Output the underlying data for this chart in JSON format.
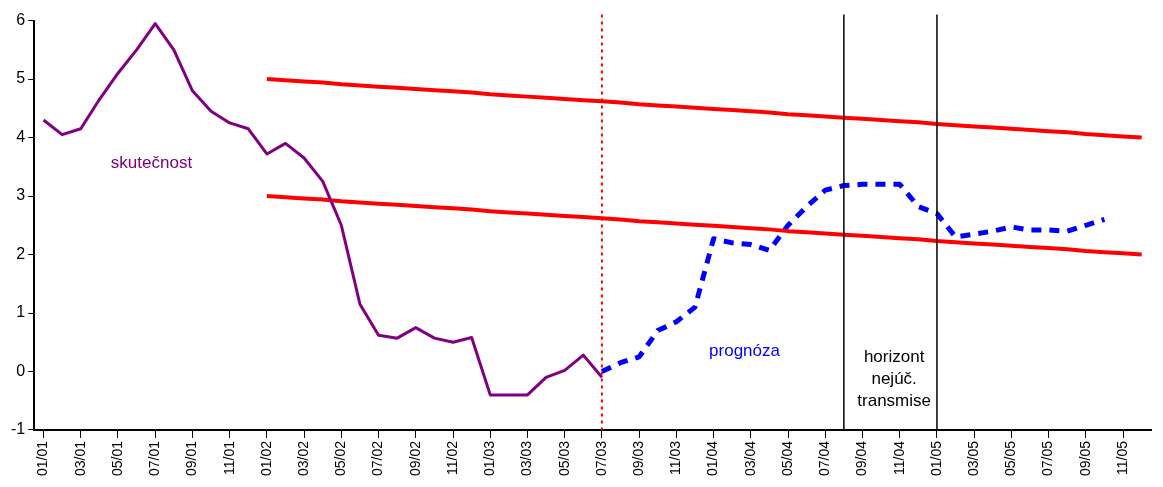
{
  "chart_data": {
    "type": "line",
    "x": [
      "2001-01",
      "2001-02",
      "2001-03",
      "2001-04",
      "2001-05",
      "2001-06",
      "2001-07",
      "2001-08",
      "2001-09",
      "2001-10",
      "2001-11",
      "2001-12",
      "2002-01",
      "2002-02",
      "2002-03",
      "2002-04",
      "2002-05",
      "2002-06",
      "2002-07",
      "2002-08",
      "2002-09",
      "2002-10",
      "2002-11",
      "2002-12",
      "2003-01",
      "2003-02",
      "2003-03",
      "2003-04",
      "2003-05",
      "2003-06",
      "2003-07",
      "2003-08",
      "2003-09",
      "2003-10",
      "2003-11",
      "2003-12",
      "2004-01",
      "2004-02",
      "2004-03",
      "2004-04",
      "2004-05",
      "2004-06",
      "2004-07",
      "2004-08",
      "2004-09",
      "2004-10",
      "2004-11",
      "2004-12",
      "2005-01",
      "2005-02",
      "2005-03",
      "2005-04",
      "2005-05",
      "2005-06",
      "2005-07",
      "2005-08",
      "2005-09",
      "2005-10",
      "2005-11",
      "2005-12"
    ],
    "series": [
      {
        "name": "skutečnost",
        "color": "#800080",
        "values": [
          4.3,
          4.05,
          4.15,
          4.65,
          5.1,
          5.5,
          5.95,
          5.5,
          4.8,
          4.45,
          4.25,
          4.15,
          3.72,
          3.9,
          3.65,
          3.25,
          2.5,
          1.15,
          0.62,
          0.57,
          0.75,
          0.57,
          0.5,
          0.58,
          -0.4,
          -0.4,
          -0.4,
          -0.1,
          0.02,
          0.28,
          -0.1,
          null,
          null,
          null,
          null,
          null,
          null,
          null,
          null,
          null,
          null,
          null,
          null,
          null,
          null,
          null,
          null,
          null,
          null,
          null,
          null,
          null,
          null,
          null,
          null,
          null,
          null,
          null,
          null,
          null
        ]
      },
      {
        "color": "#ff0000",
        "values": [
          null,
          null,
          null,
          null,
          null,
          null,
          null,
          null,
          null,
          null,
          null,
          null,
          5.0,
          4.98,
          4.96,
          4.94,
          4.91,
          4.89,
          4.87,
          4.85,
          4.83,
          4.81,
          4.79,
          4.77,
          4.74,
          4.72,
          4.7,
          4.68,
          4.66,
          4.64,
          4.62,
          4.6,
          4.57,
          4.55,
          4.53,
          4.51,
          4.49,
          4.47,
          4.45,
          4.43,
          4.4,
          4.38,
          4.36,
          4.34,
          4.32,
          4.3,
          4.28,
          4.26,
          4.23,
          4.21,
          4.19,
          4.17,
          4.15,
          4.13,
          4.11,
          4.09,
          4.06,
          4.04,
          4.02,
          4.0
        ]
      },
      {
        "color": "#ff0000",
        "values": [
          null,
          null,
          null,
          null,
          null,
          null,
          null,
          null,
          null,
          null,
          null,
          null,
          3.0,
          2.98,
          2.96,
          2.94,
          2.91,
          2.89,
          2.87,
          2.85,
          2.83,
          2.81,
          2.79,
          2.77,
          2.74,
          2.72,
          2.7,
          2.68,
          2.66,
          2.64,
          2.62,
          2.6,
          2.57,
          2.55,
          2.53,
          2.51,
          2.49,
          2.47,
          2.45,
          2.43,
          2.4,
          2.38,
          2.36,
          2.34,
          2.32,
          2.3,
          2.28,
          2.26,
          2.23,
          2.21,
          2.19,
          2.17,
          2.15,
          2.13,
          2.11,
          2.09,
          2.06,
          2.04,
          2.02,
          2.0
        ]
      },
      {
        "name": "prognóza",
        "color": "#0000ff",
        "line_style": "dashed",
        "values": [
          null,
          null,
          null,
          null,
          null,
          null,
          null,
          null,
          null,
          null,
          null,
          null,
          null,
          null,
          null,
          null,
          null,
          null,
          null,
          null,
          null,
          null,
          null,
          null,
          null,
          null,
          null,
          null,
          null,
          null,
          0.0,
          0.15,
          0.25,
          0.7,
          0.85,
          1.1,
          2.27,
          2.2,
          2.17,
          2.07,
          2.5,
          2.82,
          3.1,
          3.18,
          3.2,
          3.2,
          3.2,
          2.82,
          2.7,
          2.3,
          2.35,
          2.4,
          2.47,
          2.42,
          2.42,
          2.4,
          2.5,
          2.6,
          null,
          null
        ]
      }
    ],
    "xlim": [
      "2000-12-16",
      "2005-12-16"
    ],
    "xticks": [
      {
        "value": "2001-01",
        "label": "01/01"
      },
      {
        "value": "2001-03",
        "label": "03/01"
      },
      {
        "value": "2001-05",
        "label": "05/01"
      },
      {
        "value": "2001-07",
        "label": "07/01"
      },
      {
        "value": "2001-09",
        "label": "09/01"
      },
      {
        "value": "2001-11",
        "label": "11/01"
      },
      {
        "value": "2002-01",
        "label": "01/02"
      },
      {
        "value": "2002-03",
        "label": "03/02"
      },
      {
        "value": "2002-05",
        "label": "05/02"
      },
      {
        "value": "2002-07",
        "label": "07/02"
      },
      {
        "value": "2002-09",
        "label": "09/02"
      },
      {
        "value": "2002-11",
        "label": "11/02"
      },
      {
        "value": "2003-01",
        "label": "01/03"
      },
      {
        "value": "2003-03",
        "label": "03/03"
      },
      {
        "value": "2003-05",
        "label": "05/03"
      },
      {
        "value": "2003-07",
        "label": "07/03"
      },
      {
        "value": "2003-09",
        "label": "09/03"
      },
      {
        "value": "2003-11",
        "label": "11/03"
      },
      {
        "value": "2004-01",
        "label": "01/04"
      },
      {
        "value": "2004-03",
        "label": "03/04"
      },
      {
        "value": "2004-05",
        "label": "05/04"
      },
      {
        "value": "2004-07",
        "label": "07/04"
      },
      {
        "value": "2004-09",
        "label": "09/04"
      },
      {
        "value": "2004-11",
        "label": "11/04"
      },
      {
        "value": "2005-01",
        "label": "01/05"
      },
      {
        "value": "2005-03",
        "label": "03/05"
      },
      {
        "value": "2005-05",
        "label": "05/05"
      },
      {
        "value": "2005-07",
        "label": "07/05"
      },
      {
        "value": "2005-09",
        "label": "09/05"
      },
      {
        "value": "2005-11",
        "label": "11/05"
      }
    ],
    "ylim": [
      -1,
      6
    ],
    "yticks": [
      -1,
      0,
      1,
      2,
      3,
      4,
      5,
      6
    ],
    "grid": false,
    "legend": false,
    "marker": "none",
    "line_style": "solid",
    "ref_lines": [
      {
        "axis": "x",
        "value": "2003-07",
        "color": "#ff0000",
        "line_style": "dotted"
      },
      {
        "axis": "x",
        "value": "2004-08",
        "color": "#000000",
        "line_style": "solid"
      },
      {
        "axis": "x",
        "value": "2005-01",
        "color": "#000000",
        "line_style": "solid"
      }
    ],
    "annotations": [
      "horizont nejúč. transmise"
    ]
  }
}
